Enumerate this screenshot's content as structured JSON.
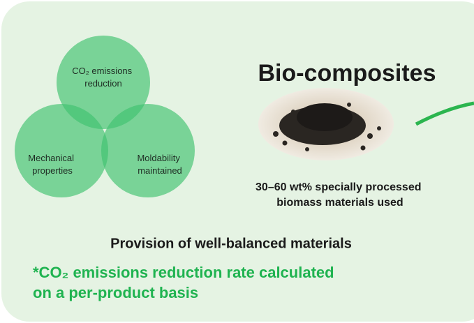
{
  "venn": {
    "circles": [
      {
        "lines": [
          "CO₂ emissions",
          "reduction"
        ]
      },
      {
        "lines": [
          "Mechanical",
          "properties"
        ]
      },
      {
        "lines": [
          "Moldability",
          "maintained"
        ]
      }
    ]
  },
  "product": {
    "title": "Bio-composites",
    "description": [
      "30–60 wt% specially processed",
      "biomass materials used"
    ]
  },
  "summary": "Provision of well-balanced materials",
  "note": [
    "*CO₂ emissions reduction rate calculated",
    "on a per-product basis"
  ]
}
